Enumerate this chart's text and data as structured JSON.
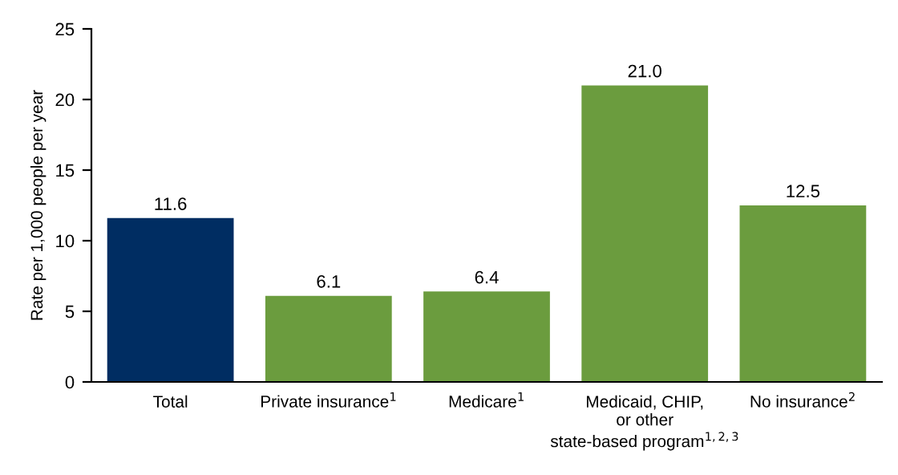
{
  "chart_data": {
    "type": "bar",
    "ylabel": "Rate per 1,000 people per year",
    "categories": [
      "Total",
      "Private insurance$^{1}$",
      "Medicare$^{1}$",
      "Medicaid, CHIP,\nor other\nstate-based program$^{1,2,3}$",
      "No insurance$^{2}$"
    ],
    "values": [
      11.6,
      6.1,
      6.4,
      21.0,
      12.5
    ],
    "colors": [
      "#002d62",
      "#6b9c3e",
      "#6b9c3e",
      "#6b9c3e",
      "#6b9c3e"
    ],
    "value_labels": [
      "11.6",
      "6.1",
      "6.4",
      "21.0",
      "12.5"
    ],
    "ylim": [
      0,
      25
    ],
    "yticks": [
      0,
      5,
      10,
      15,
      20,
      25
    ],
    "grid": false,
    "legend": false
  }
}
